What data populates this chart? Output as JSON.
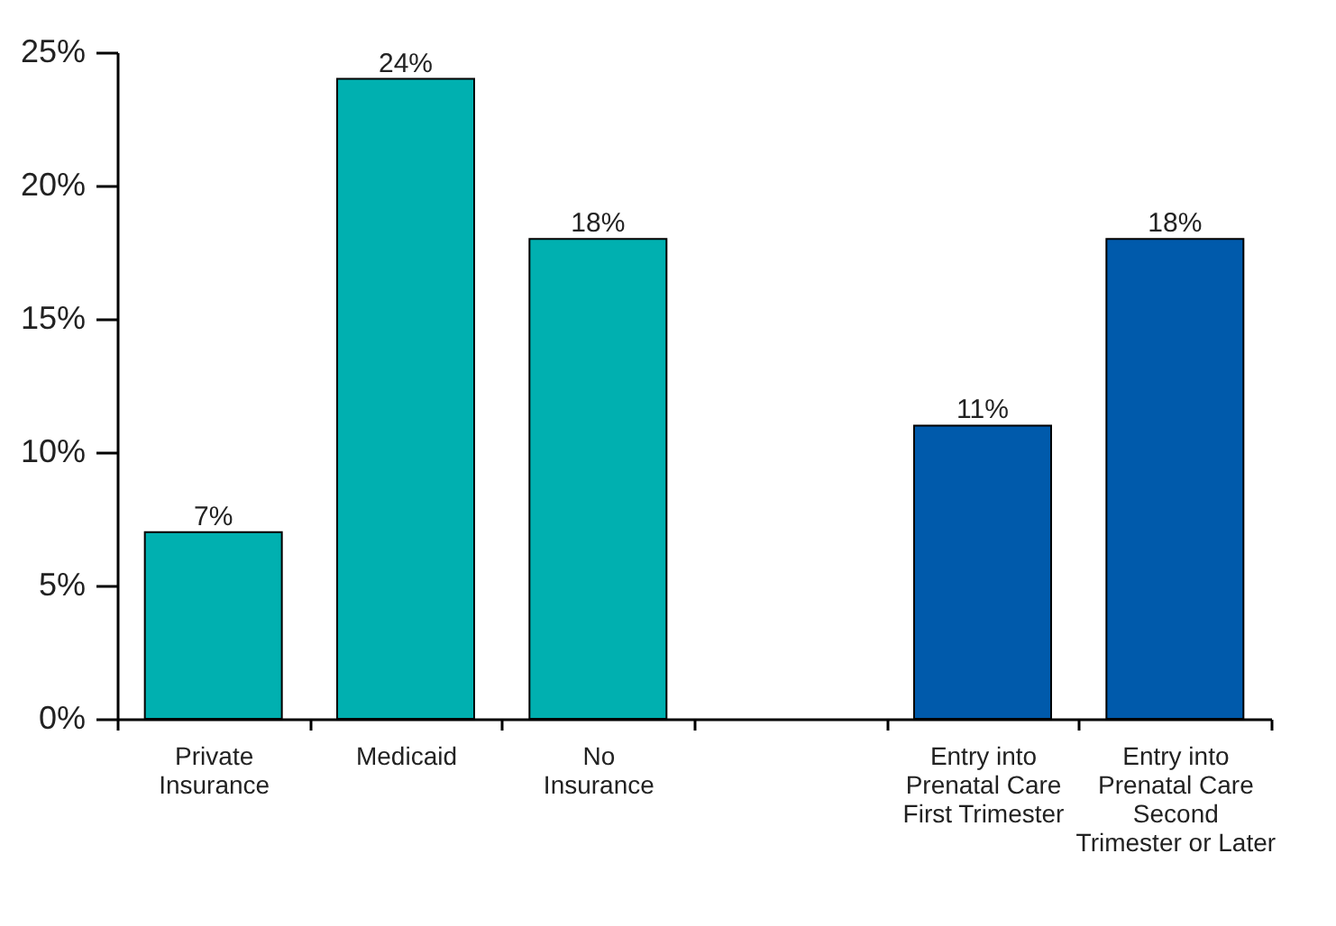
{
  "chart_data": {
    "type": "bar",
    "categories": [
      "Private\nInsurance",
      "Medicaid",
      "No\nInsurance",
      null,
      "Entry into\nPrenatal Care\nFirst Trimester",
      "Entry into\nPrenatal Care\nSecond\nTrimester or Later"
    ],
    "values": [
      7,
      24,
      18,
      null,
      11,
      18
    ],
    "colors": [
      "#00b0b0",
      "#00b0b0",
      "#00b0b0",
      "#00b0b0",
      "#005aab",
      "#005aab"
    ],
    "value_labels": [
      "7%",
      "24%",
      "18%",
      null,
      "11%",
      "18%"
    ],
    "ylim": [
      0,
      25
    ],
    "yticks": [
      {
        "value": 0,
        "label": "0%"
      },
      {
        "value": 5,
        "label": "5%"
      },
      {
        "value": 10,
        "label": "10%"
      },
      {
        "value": 15,
        "label": "15%"
      },
      {
        "value": 20,
        "label": "20%"
      },
      {
        "value": 25,
        "label": "25%"
      }
    ],
    "grid": false,
    "legend": false
  }
}
